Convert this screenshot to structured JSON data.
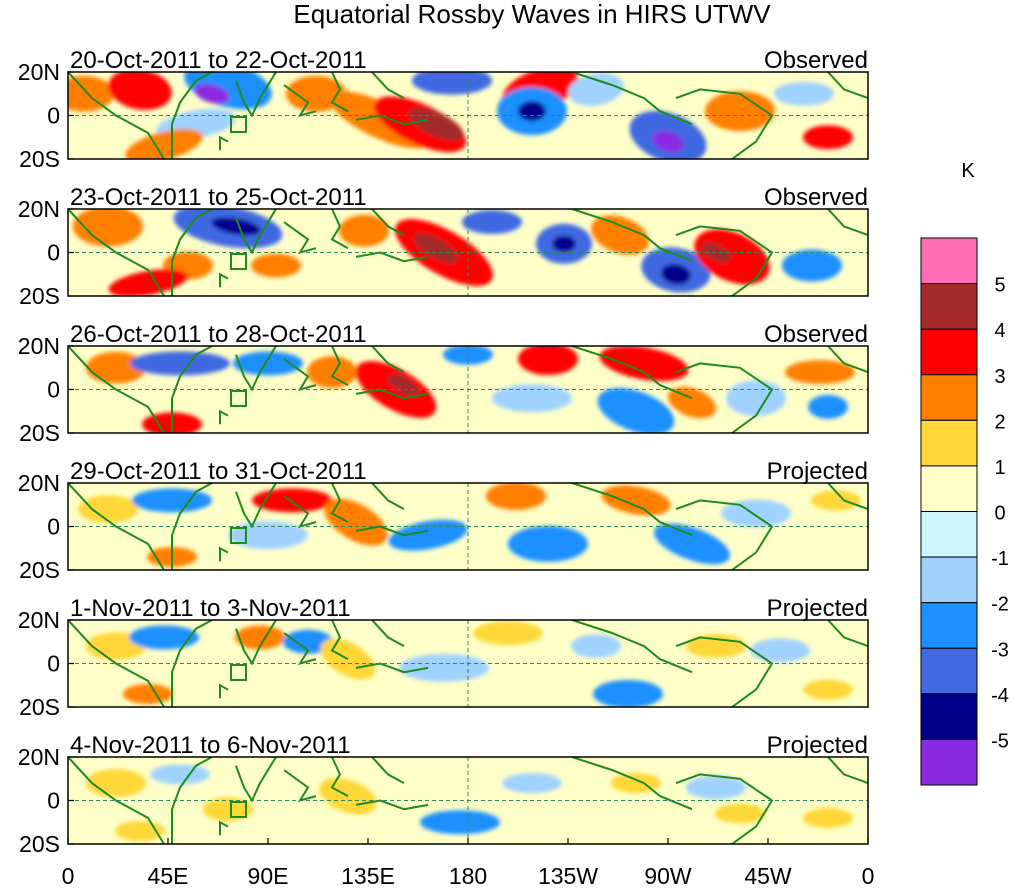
{
  "title": "Equatorial Rossby Waves in HIRS UTWV",
  "unit_label": "K",
  "latitude_ticks": [
    "20N",
    "0",
    "20S"
  ],
  "longitude_ticks": [
    "0",
    "45E",
    "90E",
    "135E",
    "180",
    "135W",
    "90W",
    "45W",
    "0"
  ],
  "panels": [
    {
      "date_range": "20-Oct-2011 to 22-Oct-2011",
      "status": "Observed"
    },
    {
      "date_range": "23-Oct-2011 to 25-Oct-2011",
      "status": "Observed"
    },
    {
      "date_range": "26-Oct-2011 to 28-Oct-2011",
      "status": "Observed"
    },
    {
      "date_range": "29-Oct-2011 to 31-Oct-2011",
      "status": "Projected"
    },
    {
      "date_range": "1-Nov-2011 to 3-Nov-2011",
      "status": "Projected"
    },
    {
      "date_range": "4-Nov-2011 to 6-Nov-2011",
      "status": "Projected"
    }
  ],
  "colorbar": {
    "labels": [
      "5",
      "4",
      "3",
      "2",
      "1",
      "0",
      "-1",
      "-2",
      "-3",
      "-4",
      "-5"
    ],
    "colors": [
      "#ff6eb4",
      "#a52a2a",
      "#ff0000",
      "#ff7f00",
      "#ffd737",
      "#ffffc8",
      "#d0f5ff",
      "#a0d2ff",
      "#1e90ff",
      "#4169e1",
      "#00008b",
      "#8a2be2"
    ]
  },
  "palette": {
    "coast": "#1f8a1f",
    "grid": "#2e8b57",
    "pos1": "#ffd737",
    "pos2": "#ff7f00",
    "pos3": "#ff0000",
    "pos4": "#a52a2a",
    "neg1": "#d0f5ff",
    "neg2": "#a0d2ff",
    "neg3": "#1e90ff",
    "neg4": "#4169e1",
    "neg5": "#00008b",
    "neg6": "#8a2be2",
    "base": "#ffffc8"
  }
}
